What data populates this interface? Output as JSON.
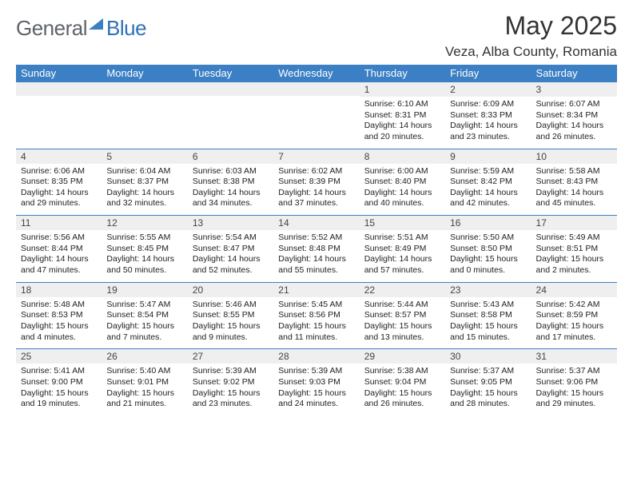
{
  "brand": {
    "part1": "General",
    "part2": "Blue"
  },
  "title": "May 2025",
  "location": "Veza, Alba County, Romania",
  "colors": {
    "header_bg": "#3b7fc4",
    "header_text": "#ffffff",
    "daynum_bg": "#efefef",
    "cell_border": "#3b7fc4",
    "body_text": "#222222",
    "page_bg": "#ffffff"
  },
  "typography": {
    "title_fontsize_pt": 24,
    "location_fontsize_pt": 13,
    "dayhead_fontsize_pt": 10,
    "daynum_fontsize_pt": 9,
    "body_fontsize_pt": 8
  },
  "weekdays": [
    "Sunday",
    "Monday",
    "Tuesday",
    "Wednesday",
    "Thursday",
    "Friday",
    "Saturday"
  ],
  "rows": [
    [
      null,
      null,
      null,
      null,
      {
        "n": "1",
        "sr": "Sunrise: 6:10 AM",
        "ss": "Sunset: 8:31 PM",
        "d1": "Daylight: 14 hours",
        "d2": "and 20 minutes."
      },
      {
        "n": "2",
        "sr": "Sunrise: 6:09 AM",
        "ss": "Sunset: 8:33 PM",
        "d1": "Daylight: 14 hours",
        "d2": "and 23 minutes."
      },
      {
        "n": "3",
        "sr": "Sunrise: 6:07 AM",
        "ss": "Sunset: 8:34 PM",
        "d1": "Daylight: 14 hours",
        "d2": "and 26 minutes."
      }
    ],
    [
      {
        "n": "4",
        "sr": "Sunrise: 6:06 AM",
        "ss": "Sunset: 8:35 PM",
        "d1": "Daylight: 14 hours",
        "d2": "and 29 minutes."
      },
      {
        "n": "5",
        "sr": "Sunrise: 6:04 AM",
        "ss": "Sunset: 8:37 PM",
        "d1": "Daylight: 14 hours",
        "d2": "and 32 minutes."
      },
      {
        "n": "6",
        "sr": "Sunrise: 6:03 AM",
        "ss": "Sunset: 8:38 PM",
        "d1": "Daylight: 14 hours",
        "d2": "and 34 minutes."
      },
      {
        "n": "7",
        "sr": "Sunrise: 6:02 AM",
        "ss": "Sunset: 8:39 PM",
        "d1": "Daylight: 14 hours",
        "d2": "and 37 minutes."
      },
      {
        "n": "8",
        "sr": "Sunrise: 6:00 AM",
        "ss": "Sunset: 8:40 PM",
        "d1": "Daylight: 14 hours",
        "d2": "and 40 minutes."
      },
      {
        "n": "9",
        "sr": "Sunrise: 5:59 AM",
        "ss": "Sunset: 8:42 PM",
        "d1": "Daylight: 14 hours",
        "d2": "and 42 minutes."
      },
      {
        "n": "10",
        "sr": "Sunrise: 5:58 AM",
        "ss": "Sunset: 8:43 PM",
        "d1": "Daylight: 14 hours",
        "d2": "and 45 minutes."
      }
    ],
    [
      {
        "n": "11",
        "sr": "Sunrise: 5:56 AM",
        "ss": "Sunset: 8:44 PM",
        "d1": "Daylight: 14 hours",
        "d2": "and 47 minutes."
      },
      {
        "n": "12",
        "sr": "Sunrise: 5:55 AM",
        "ss": "Sunset: 8:45 PM",
        "d1": "Daylight: 14 hours",
        "d2": "and 50 minutes."
      },
      {
        "n": "13",
        "sr": "Sunrise: 5:54 AM",
        "ss": "Sunset: 8:47 PM",
        "d1": "Daylight: 14 hours",
        "d2": "and 52 minutes."
      },
      {
        "n": "14",
        "sr": "Sunrise: 5:52 AM",
        "ss": "Sunset: 8:48 PM",
        "d1": "Daylight: 14 hours",
        "d2": "and 55 minutes."
      },
      {
        "n": "15",
        "sr": "Sunrise: 5:51 AM",
        "ss": "Sunset: 8:49 PM",
        "d1": "Daylight: 14 hours",
        "d2": "and 57 minutes."
      },
      {
        "n": "16",
        "sr": "Sunrise: 5:50 AM",
        "ss": "Sunset: 8:50 PM",
        "d1": "Daylight: 15 hours",
        "d2": "and 0 minutes."
      },
      {
        "n": "17",
        "sr": "Sunrise: 5:49 AM",
        "ss": "Sunset: 8:51 PM",
        "d1": "Daylight: 15 hours",
        "d2": "and 2 minutes."
      }
    ],
    [
      {
        "n": "18",
        "sr": "Sunrise: 5:48 AM",
        "ss": "Sunset: 8:53 PM",
        "d1": "Daylight: 15 hours",
        "d2": "and 4 minutes."
      },
      {
        "n": "19",
        "sr": "Sunrise: 5:47 AM",
        "ss": "Sunset: 8:54 PM",
        "d1": "Daylight: 15 hours",
        "d2": "and 7 minutes."
      },
      {
        "n": "20",
        "sr": "Sunrise: 5:46 AM",
        "ss": "Sunset: 8:55 PM",
        "d1": "Daylight: 15 hours",
        "d2": "and 9 minutes."
      },
      {
        "n": "21",
        "sr": "Sunrise: 5:45 AM",
        "ss": "Sunset: 8:56 PM",
        "d1": "Daylight: 15 hours",
        "d2": "and 11 minutes."
      },
      {
        "n": "22",
        "sr": "Sunrise: 5:44 AM",
        "ss": "Sunset: 8:57 PM",
        "d1": "Daylight: 15 hours",
        "d2": "and 13 minutes."
      },
      {
        "n": "23",
        "sr": "Sunrise: 5:43 AM",
        "ss": "Sunset: 8:58 PM",
        "d1": "Daylight: 15 hours",
        "d2": "and 15 minutes."
      },
      {
        "n": "24",
        "sr": "Sunrise: 5:42 AM",
        "ss": "Sunset: 8:59 PM",
        "d1": "Daylight: 15 hours",
        "d2": "and 17 minutes."
      }
    ],
    [
      {
        "n": "25",
        "sr": "Sunrise: 5:41 AM",
        "ss": "Sunset: 9:00 PM",
        "d1": "Daylight: 15 hours",
        "d2": "and 19 minutes."
      },
      {
        "n": "26",
        "sr": "Sunrise: 5:40 AM",
        "ss": "Sunset: 9:01 PM",
        "d1": "Daylight: 15 hours",
        "d2": "and 21 minutes."
      },
      {
        "n": "27",
        "sr": "Sunrise: 5:39 AM",
        "ss": "Sunset: 9:02 PM",
        "d1": "Daylight: 15 hours",
        "d2": "and 23 minutes."
      },
      {
        "n": "28",
        "sr": "Sunrise: 5:39 AM",
        "ss": "Sunset: 9:03 PM",
        "d1": "Daylight: 15 hours",
        "d2": "and 24 minutes."
      },
      {
        "n": "29",
        "sr": "Sunrise: 5:38 AM",
        "ss": "Sunset: 9:04 PM",
        "d1": "Daylight: 15 hours",
        "d2": "and 26 minutes."
      },
      {
        "n": "30",
        "sr": "Sunrise: 5:37 AM",
        "ss": "Sunset: 9:05 PM",
        "d1": "Daylight: 15 hours",
        "d2": "and 28 minutes."
      },
      {
        "n": "31",
        "sr": "Sunrise: 5:37 AM",
        "ss": "Sunset: 9:06 PM",
        "d1": "Daylight: 15 hours",
        "d2": "and 29 minutes."
      }
    ]
  ]
}
